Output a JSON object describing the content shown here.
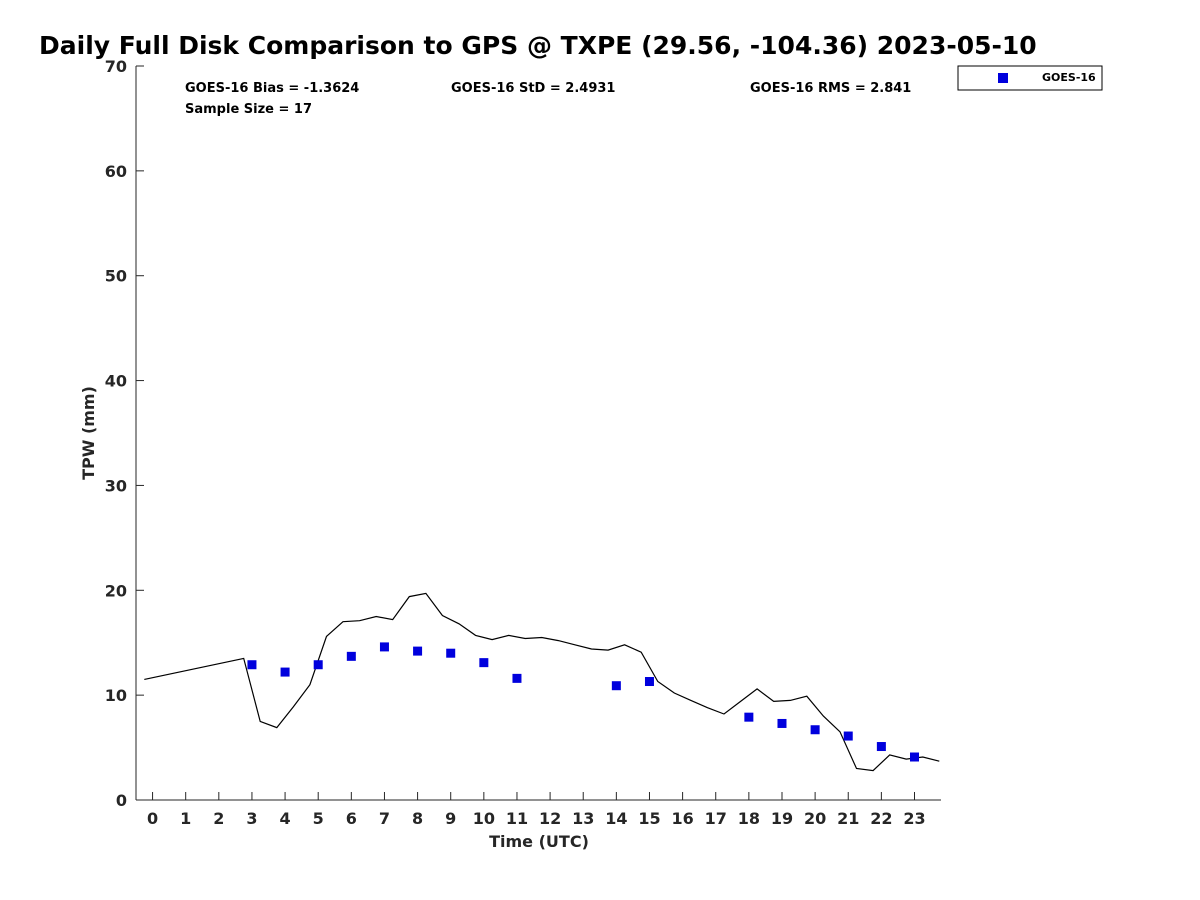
{
  "chart_data": {
    "type": "line",
    "title": "Daily Full Disk Comparison to GPS @ TXPE (29.56, -104.36) 2023-05-10",
    "xlabel": "Time (UTC)",
    "ylabel": "TPW (mm)",
    "xlim": [
      -0.5,
      23.8
    ],
    "ylim": [
      0,
      70
    ],
    "x_ticks": [
      0,
      1,
      2,
      3,
      4,
      5,
      6,
      7,
      8,
      9,
      10,
      11,
      12,
      13,
      14,
      15,
      16,
      17,
      18,
      19,
      20,
      21,
      22,
      23
    ],
    "y_ticks": [
      0,
      10,
      20,
      30,
      40,
      50,
      60,
      70
    ],
    "grid": false,
    "legend_position": "top-right",
    "stats": {
      "bias": "GOES-16 Bias = -1.3624",
      "std": "GOES-16 StD = 2.4931",
      "rms": "GOES-16 RMS = 2.841",
      "sample_size": "Sample Size = 17"
    },
    "series": [
      {
        "kind": "line",
        "color": "#000000",
        "x": [
          -0.25,
          2.75,
          3.25,
          3.75,
          4.25,
          4.75,
          5.25,
          5.75,
          6.25,
          6.75,
          7.25,
          7.75,
          8.25,
          8.75,
          9.25,
          9.75,
          10.25,
          10.75,
          11.25,
          11.75,
          12.25,
          12.75,
          13.25,
          13.75,
          14.25,
          14.75,
          15.25,
          15.75,
          16.25,
          16.75,
          17.25,
          17.75,
          18.25,
          18.75,
          19.25,
          19.75,
          20.25,
          20.75,
          21.25,
          21.75,
          22.25,
          22.75,
          23.25,
          23.75
        ],
        "y": [
          11.5,
          13.5,
          7.5,
          6.9,
          8.9,
          11.0,
          15.6,
          17.0,
          17.1,
          17.5,
          17.2,
          19.4,
          19.7,
          17.6,
          16.8,
          15.7,
          15.3,
          15.7,
          15.4,
          15.5,
          15.2,
          14.8,
          14.4,
          14.3,
          14.8,
          14.1,
          11.3,
          10.2,
          9.5,
          8.8,
          8.2,
          9.4,
          10.6,
          9.4,
          9.5,
          9.9,
          8.0,
          6.5,
          3.0,
          2.8,
          4.3,
          3.9,
          4.1,
          3.7
        ]
      },
      {
        "name": "GOES-16",
        "kind": "scatter",
        "color": "#0000dd",
        "x": [
          3,
          4,
          5,
          6,
          7,
          8,
          9,
          10,
          11,
          14,
          15,
          18,
          19,
          20,
          21,
          22,
          23
        ],
        "y": [
          12.9,
          12.2,
          12.9,
          13.7,
          14.6,
          14.2,
          14.0,
          13.1,
          11.6,
          10.9,
          11.3,
          7.9,
          7.3,
          6.7,
          6.1,
          5.1,
          4.1
        ]
      }
    ]
  }
}
